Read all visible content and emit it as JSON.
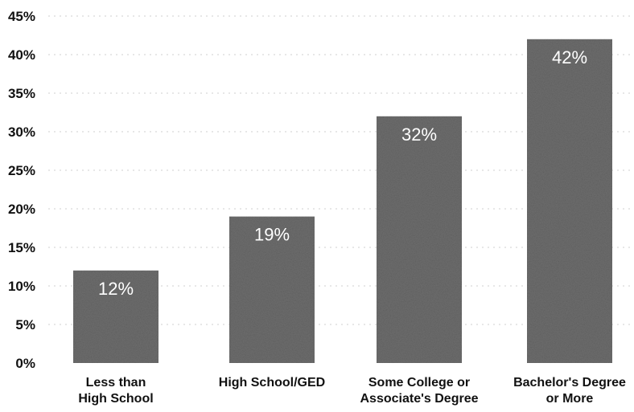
{
  "chart_data": {
    "type": "bar",
    "title": "",
    "xlabel": "",
    "ylabel": "",
    "categories": [
      [
        "Less than",
        "High School"
      ],
      [
        "High School/GED"
      ],
      [
        "Some College or",
        "Associate's Degree"
      ],
      [
        "Bachelor's Degree",
        "or More"
      ]
    ],
    "values": [
      12,
      19,
      32,
      42
    ],
    "data_labels": [
      "12%",
      "19%",
      "32%",
      "42%"
    ],
    "ylim": [
      0,
      45
    ],
    "yticks": [
      0,
      5,
      10,
      15,
      20,
      25,
      30,
      35,
      40,
      45
    ],
    "ytick_labels": [
      "0%",
      "5%",
      "10%",
      "15%",
      "20%",
      "25%",
      "30%",
      "35%",
      "40%",
      "45%"
    ],
    "grid": true,
    "legend": "none",
    "bar_color": "#6e6e6e",
    "label_color": "#ffffff"
  }
}
